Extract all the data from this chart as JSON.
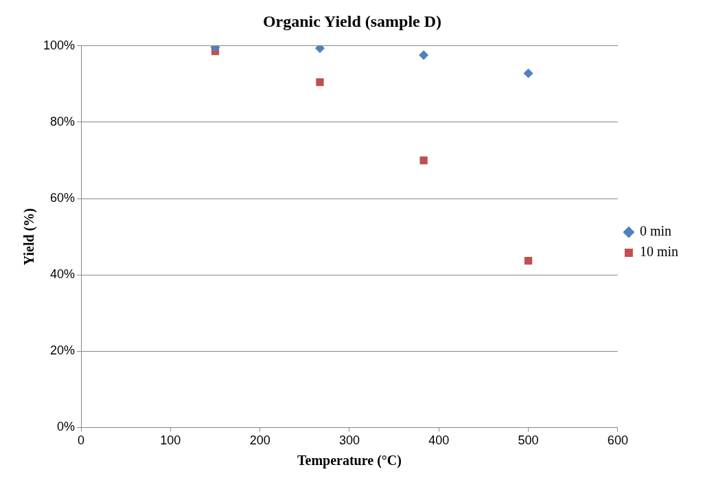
{
  "chart_data": {
    "type": "scatter",
    "title": "Organic Yield (sample D)",
    "xlabel": "Temperature (°C)",
    "ylabel": "Yield (%)",
    "xlim": [
      0,
      600
    ],
    "xticks": [
      0,
      100,
      200,
      300,
      400,
      500,
      600
    ],
    "ylim": [
      0,
      100
    ],
    "yticks": [
      {
        "value": 0,
        "label": "0%"
      },
      {
        "value": 20,
        "label": "20%"
      },
      {
        "value": 40,
        "label": "40%"
      },
      {
        "value": 60,
        "label": "60%"
      },
      {
        "value": 80,
        "label": "80%"
      },
      {
        "value": 100,
        "label": "100%"
      }
    ],
    "grid": "y",
    "legend": "right",
    "series": [
      {
        "name": "0 min",
        "color": "#4f81bd",
        "marker": "diamond",
        "x": [
          150,
          267,
          383,
          500
        ],
        "values": [
          99.6,
          99.4,
          97.6,
          92.8
        ]
      },
      {
        "name": "10 min",
        "color": "#c0504d",
        "marker": "square",
        "x": [
          150,
          267,
          383,
          500
        ],
        "values": [
          98.6,
          90.5,
          70,
          43.7
        ]
      }
    ]
  }
}
